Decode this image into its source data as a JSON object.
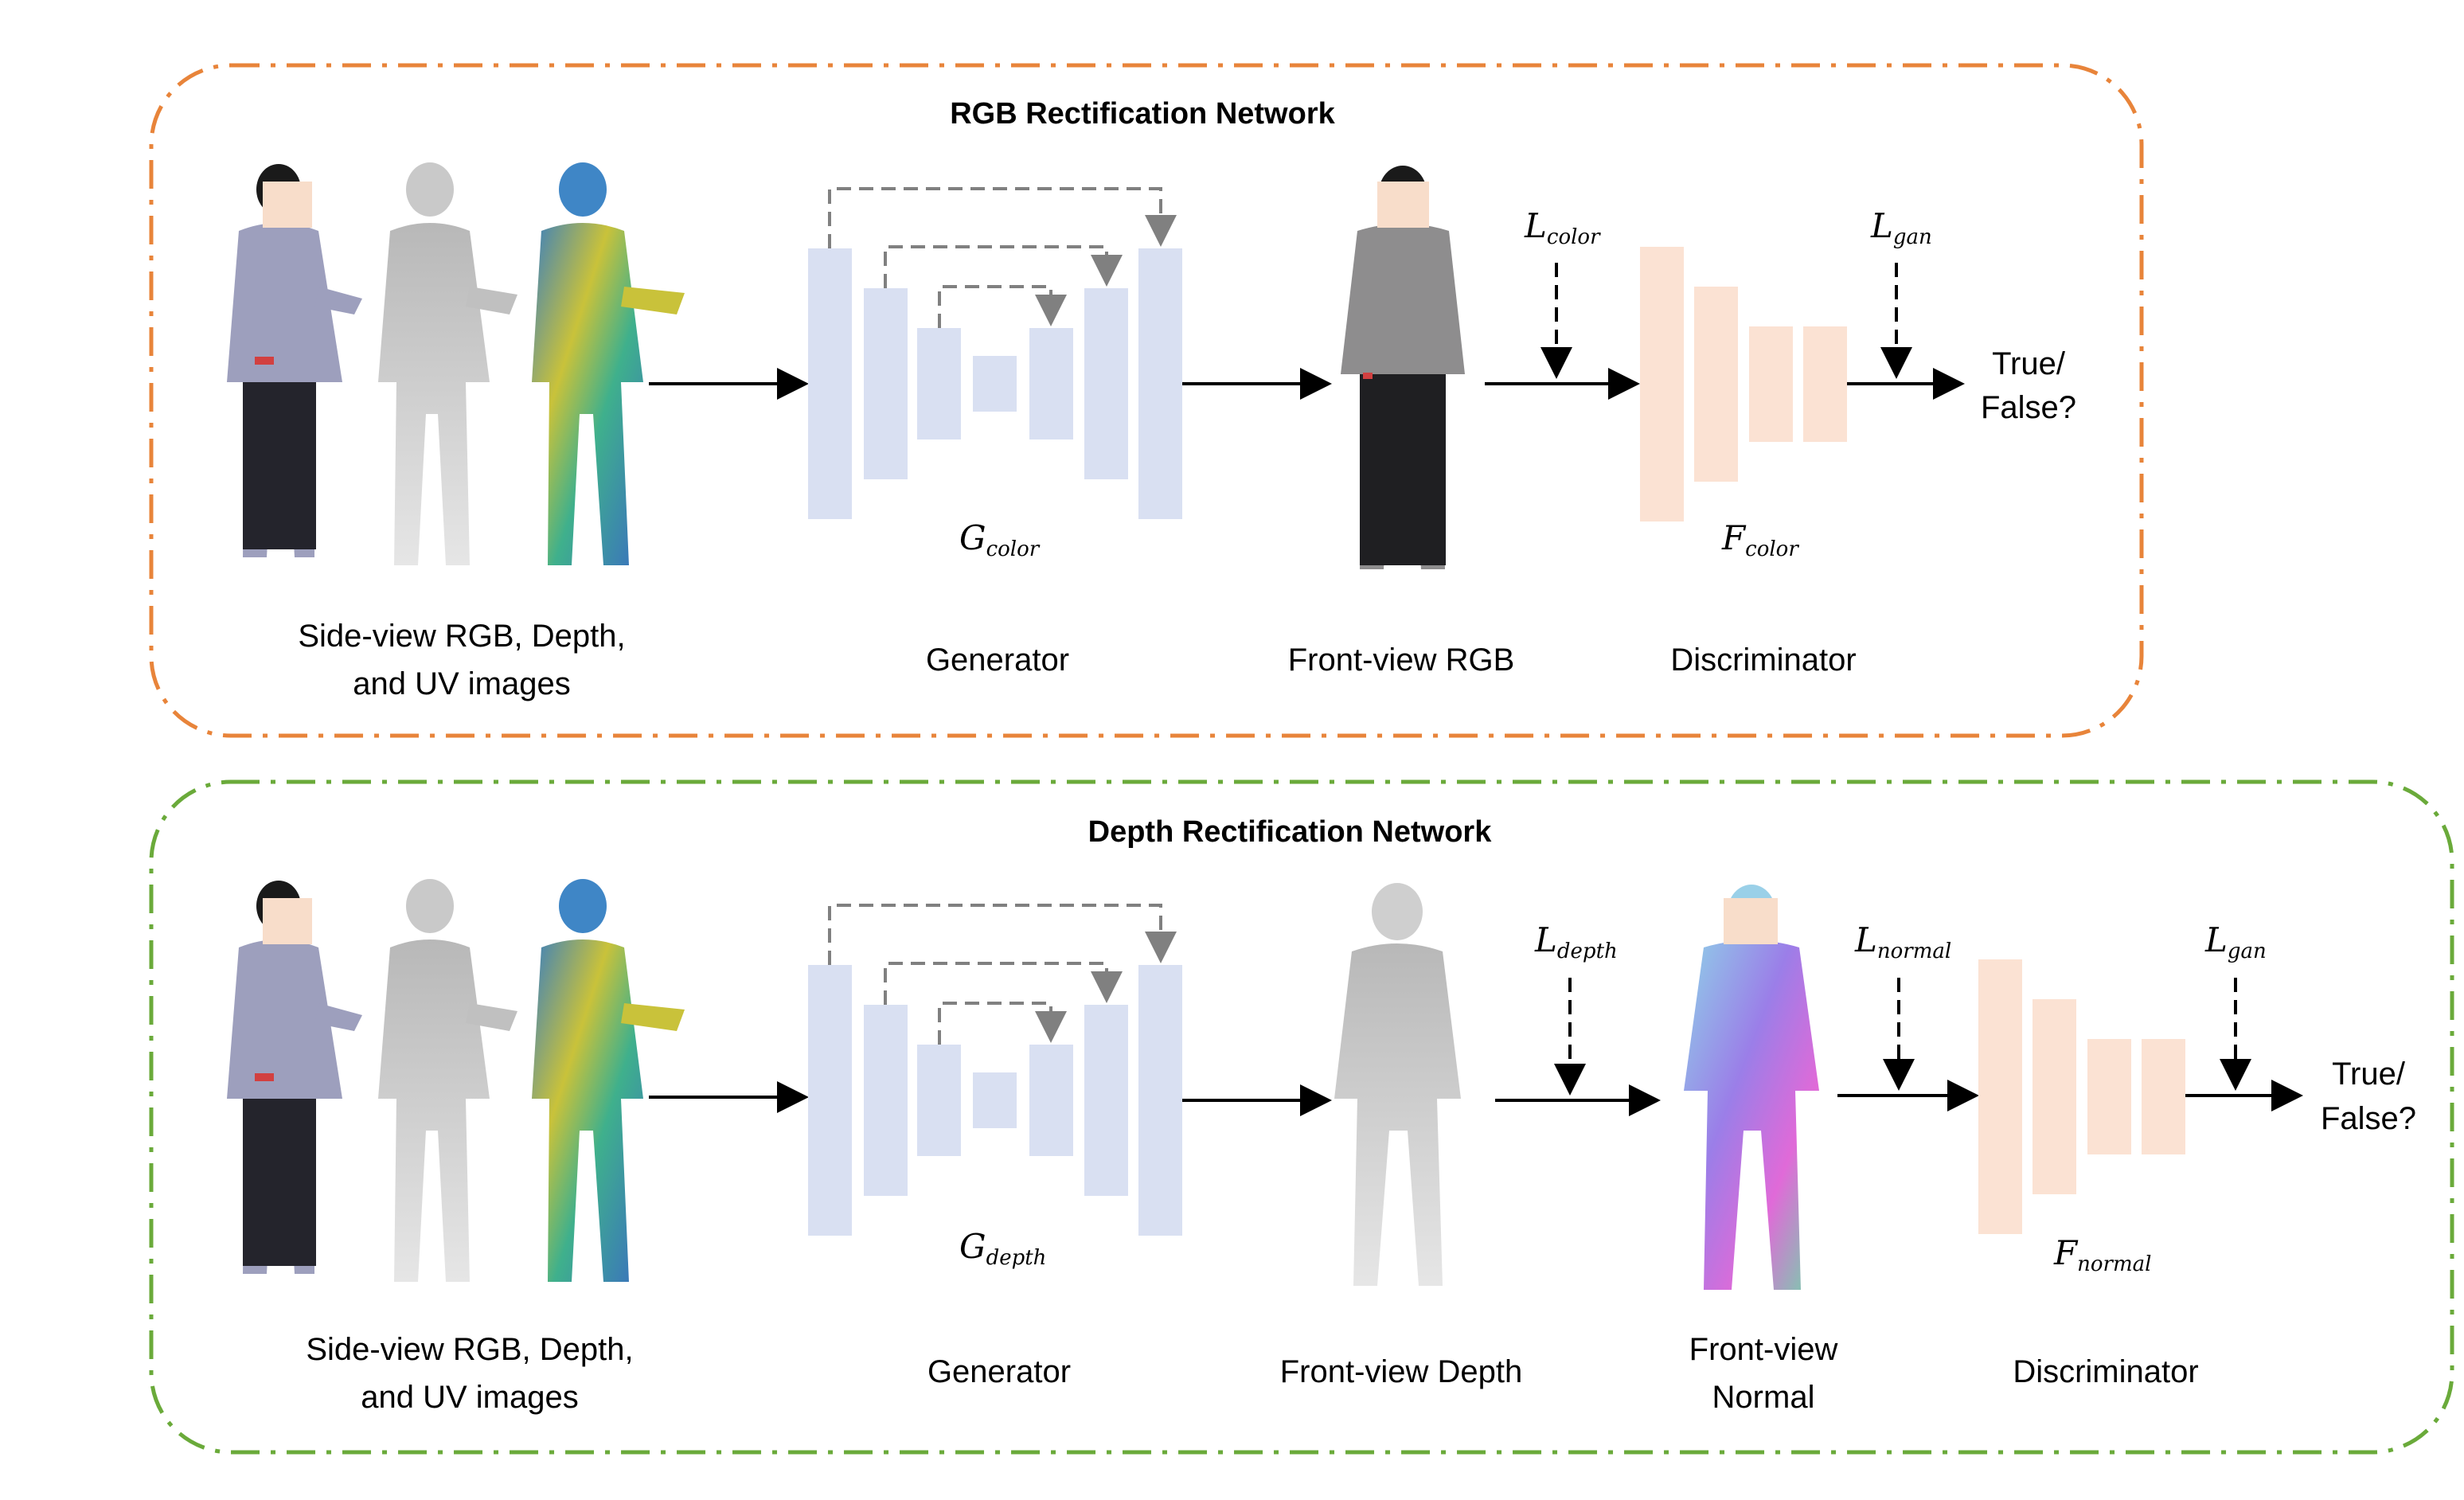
{
  "panels": [
    {
      "title": "RGB Rectification Network",
      "border_color": "#e8843a",
      "input_label_line1": "Side-view RGB, Depth,",
      "input_label_line2": "and UV images",
      "generator_symbol": "G",
      "generator_sub": "color",
      "generator_label": "Generator",
      "output_label": "Front-view RGB",
      "loss1_symbol": "L",
      "loss1_sub": "color",
      "discriminator_symbol": "F",
      "discriminator_sub": "color",
      "discriminator_label": "Discriminator",
      "loss_gan_symbol": "L",
      "loss_gan_sub": "gan",
      "result_line1": "True/",
      "result_line2": "False?"
    },
    {
      "title": "Depth Rectification Network",
      "border_color": "#6aaa3a",
      "input_label_line1": "Side-view RGB, Depth,",
      "input_label_line2": "and UV images",
      "generator_symbol": "G",
      "generator_sub": "depth",
      "generator_label": "Generator",
      "output_label": "Front-view Depth",
      "loss1_symbol": "L",
      "loss1_sub": "depth",
      "normal_label_line1": "Front-view",
      "normal_label_line2": "Normal",
      "loss2_symbol": "L",
      "loss2_sub": "normal",
      "discriminator_symbol": "F",
      "discriminator_sub": "normal",
      "discriminator_label": "Discriminator",
      "loss_gan_symbol": "L",
      "loss_gan_sub": "gan",
      "result_line1": "True/",
      "result_line2": "False?"
    }
  ],
  "colors": {
    "generator_block": "#d9e0f2",
    "discriminator_block": "#fbe2d3",
    "skip_connection": "#808080",
    "arrow": "#000000",
    "face_mask": "#f8ddca"
  }
}
